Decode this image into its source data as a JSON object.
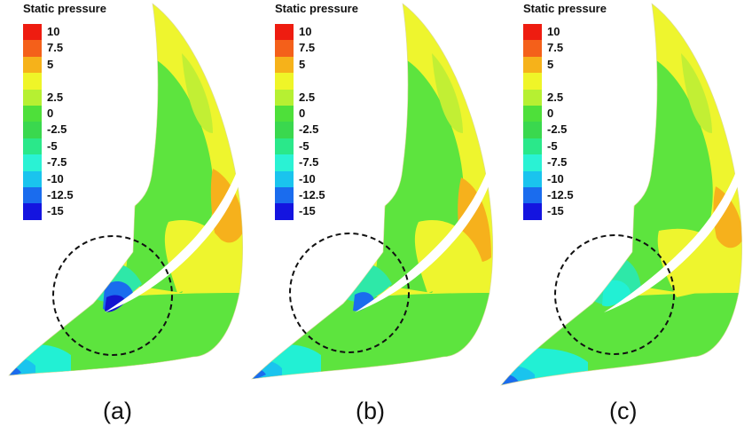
{
  "legend": {
    "title": "Static pressure",
    "levels": [
      {
        "label": "10",
        "color": "#ee1c10"
      },
      {
        "label": "7.5",
        "color": "#f4601a"
      },
      {
        "label": "5",
        "color": "#f6b21a"
      },
      {
        "label": "",
        "color": "#eff528"
      },
      {
        "label": "2.5",
        "color": "#b6f032"
      },
      {
        "label": "0",
        "color": "#4ee03a"
      },
      {
        "label": "-2.5",
        "color": "#3ad84e"
      },
      {
        "label": "-5",
        "color": "#2ae88a"
      },
      {
        "label": "-7.5",
        "color": "#2af2d4"
      },
      {
        "label": "-10",
        "color": "#1ac4ee"
      },
      {
        "label": "-12.5",
        "color": "#1a6cee"
      },
      {
        "label": "-15",
        "color": "#1414e0"
      }
    ]
  },
  "panels": [
    {
      "id": "a",
      "caption": "(a)"
    },
    {
      "id": "b",
      "caption": "(b)"
    },
    {
      "id": "c",
      "caption": "(c)"
    }
  ],
  "colors": {
    "yellow": "#eef52e",
    "lime": "#c2ef34",
    "green": "#5de43e",
    "orange": "#f6b11c",
    "cyan": "#2ee8a8",
    "teal": "#22f0d4",
    "blue": "#1a6cee",
    "deepblue": "#1414d0"
  }
}
